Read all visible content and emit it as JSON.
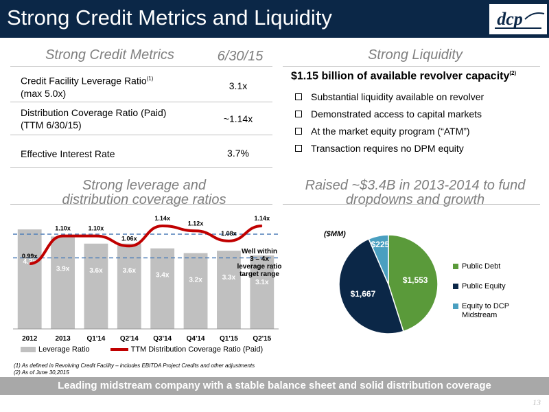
{
  "header": {
    "title": "Strong Credit Metrics and Liquidity",
    "logo_text": "dcp"
  },
  "left_top": {
    "title": "Strong Credit Metrics",
    "date_header": "6/30/15",
    "rows": [
      {
        "label_line1": "Credit Facility Leverage Ratio",
        "sup": "(1)",
        "label_line2": "(max 5.0x)",
        "value": "3.1x"
      },
      {
        "label_line1": "Distribution Coverage Ratio (Paid)",
        "label_line2": "(TTM 6/30/15)",
        "value": "~1.14x"
      },
      {
        "label_line1": "Effective Interest Rate",
        "value": "3.7%"
      }
    ]
  },
  "right_top": {
    "title": "Strong Liquidity",
    "headline": "$1.15 billion of available revolver capacity",
    "headline_sup": "(2)",
    "bullets": [
      "Substantial liquidity available on revolver",
      "Demonstrated access to capital markets",
      "At the market equity program (“ATM”)",
      "Transaction requires no DPM equity"
    ]
  },
  "left_bottom": {
    "title_line1": "Strong leverage and",
    "title_line2": "distribution coverage ratios"
  },
  "right_bottom": {
    "title_line1": "Raised ~$3.4B in 2013-2014 to fund",
    "title_line2": "dropdowns and growth"
  },
  "chart_data": [
    {
      "type": "bar",
      "categories": [
        "2012",
        "2013",
        "Q1'14",
        "Q2'14",
        "Q3'14",
        "Q4'14",
        "Q1'15",
        "Q2'15"
      ],
      "series": [
        {
          "name": "Leverage Ratio",
          "values": [
            4.2,
            3.9,
            3.6,
            3.6,
            3.4,
            3.2,
            3.3,
            3.1
          ],
          "labels": [
            "4.2x",
            "3.9x",
            "3.6x",
            "3.6x",
            "3.4x",
            "3.2x",
            "3.3x",
            "3.1x"
          ],
          "color": "#c0c0c0"
        },
        {
          "name": "TTM Distribution Coverage Ratio (Paid)",
          "values": [
            0.99,
            1.1,
            1.1,
            1.06,
            1.14,
            1.12,
            1.08,
            1.14
          ],
          "labels": [
            "0.99x",
            "1.10x",
            "1.10x",
            "1.06x",
            "1.14x",
            "1.12x",
            "1.08x",
            "1.14x"
          ],
          "color": "#c00000"
        }
      ],
      "target_range": [
        3,
        4
      ],
      "annotation": [
        "Well within",
        "3 – 4x",
        "leverage ratio",
        "target range"
      ],
      "legend": "bottom"
    },
    {
      "type": "pie",
      "unit_label": "($MM)",
      "series": [
        {
          "name": "Public Debt",
          "value": 1553,
          "label": "$1,553",
          "color": "#5a9a3a"
        },
        {
          "name": "Public Equity",
          "value": 1667,
          "label": "$1,667",
          "color": "#0b2747"
        },
        {
          "name": "Equity to DCP Midstream",
          "value": 225,
          "label": "$225",
          "color": "#4a9fc0"
        }
      ],
      "legend": "right"
    }
  ],
  "footnotes": [
    "(1)  As defined in Revolving Credit Facility – includes EBITDA Project Credits and other adjustments",
    "(2)  As of June 30,2015"
  ],
  "bottom_banner": "Leading midstream company with a stable balance sheet and solid distribution coverage",
  "page_number": "13"
}
